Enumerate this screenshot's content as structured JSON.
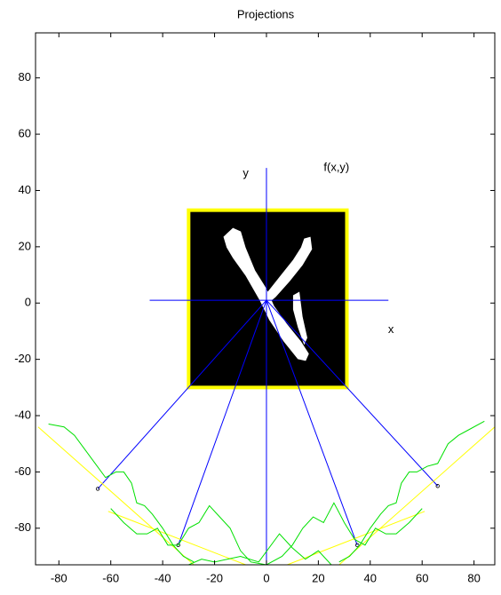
{
  "chart_data": {
    "type": "line",
    "title": "Projections",
    "xlim": [
      -89,
      88
    ],
    "ylim": [
      -93,
      96
    ],
    "xticks": [
      -80,
      -60,
      -40,
      -20,
      0,
      20,
      40,
      60,
      80
    ],
    "yticks": [
      -80,
      -60,
      -40,
      -20,
      0,
      20,
      40,
      60,
      80
    ],
    "annotations": [
      {
        "text": "x",
        "x": 48,
        "y": -9.5
      },
      {
        "text": "y",
        "x": -8,
        "y": 46
      },
      {
        "text": "f(x,y)",
        "x": 27,
        "y": 48
      }
    ],
    "image": {
      "xlim": [
        -30,
        31
      ],
      "ylim": [
        -30,
        33
      ],
      "color": "#000000",
      "border_color": "#ffff00"
    },
    "series": [
      {
        "color": "#0000ff",
        "x": [
          -45,
          47
        ],
        "y": [
          1,
          1
        ]
      },
      {
        "color": "#0000ff",
        "x": [
          0,
          0
        ],
        "y": [
          -93,
          48
        ]
      },
      {
        "color": "#0000ff",
        "x": [
          0,
          -65
        ],
        "y": [
          1,
          -66
        ],
        "marker_end": true
      },
      {
        "color": "#0000ff",
        "x": [
          0,
          -34
        ],
        "y": [
          1,
          -86
        ],
        "marker_end": true
      },
      {
        "color": "#0000ff",
        "x": [
          0,
          35
        ],
        "y": [
          1,
          -86
        ],
        "marker_end": true
      },
      {
        "color": "#0000ff",
        "x": [
          0,
          66
        ],
        "y": [
          1,
          -65
        ],
        "marker_end": true
      },
      {
        "color": "#ffff00",
        "x": [
          -88,
          -28
        ],
        "y": [
          -44,
          -93
        ]
      },
      {
        "color": "#ffff00",
        "x": [
          -61,
          -8
        ],
        "y": [
          -74,
          -93
        ]
      },
      {
        "color": "#ffff00",
        "x": [
          8,
          61
        ],
        "y": [
          -93,
          -74
        ]
      },
      {
        "color": "#ffff00",
        "x": [
          28,
          88
        ],
        "y": [
          -93,
          -44
        ]
      },
      {
        "color": "#00e000",
        "x": [
          -84,
          -78,
          -74,
          -70,
          -66,
          -62,
          -58,
          -55,
          -52,
          -50,
          -47,
          -44,
          -40,
          -36,
          -32,
          -28
        ],
        "y": [
          -43,
          -44,
          -47,
          -52,
          -57,
          -62,
          -60,
          -60,
          -64,
          -71,
          -72,
          -75,
          -80,
          -86,
          -90,
          -92
        ]
      },
      {
        "color": "#00e000",
        "x": [
          -60,
          -55,
          -50,
          -46,
          -42,
          -38,
          -34,
          -30,
          -26,
          -22,
          -18,
          -14,
          -10,
          -6,
          0
        ],
        "y": [
          -73,
          -78,
          -82,
          -82,
          -80,
          -86,
          -86,
          -80,
          -78,
          -72,
          -76,
          -80,
          -88,
          -92,
          -93
        ]
      },
      {
        "color": "#00e000",
        "x": [
          -30,
          -25,
          -20,
          -10,
          -3,
          5,
          10,
          15,
          20,
          25
        ],
        "y": [
          -93,
          -91,
          -92,
          -90,
          -92,
          -82,
          -87,
          -91,
          -88,
          -93
        ]
      },
      {
        "color": "#00e000",
        "x": [
          0,
          6,
          10,
          14,
          18,
          22,
          26,
          30,
          34,
          38,
          42,
          46,
          50,
          55,
          60
        ],
        "y": [
          -93,
          -90,
          -86,
          -80,
          -76,
          -78,
          -71,
          -78,
          -84,
          -86,
          -80,
          -82,
          -82,
          -78,
          -73
        ]
      },
      {
        "color": "#00e000",
        "x": [
          28,
          32,
          36,
          40,
          44,
          47,
          50,
          52,
          55,
          58,
          62,
          66,
          70,
          74,
          78,
          84
        ],
        "y": [
          -92,
          -90,
          -86,
          -80,
          -75,
          -72,
          -71,
          -64,
          -60,
          -60,
          -58,
          -57,
          -50,
          -47,
          -45,
          -42
        ]
      }
    ]
  }
}
